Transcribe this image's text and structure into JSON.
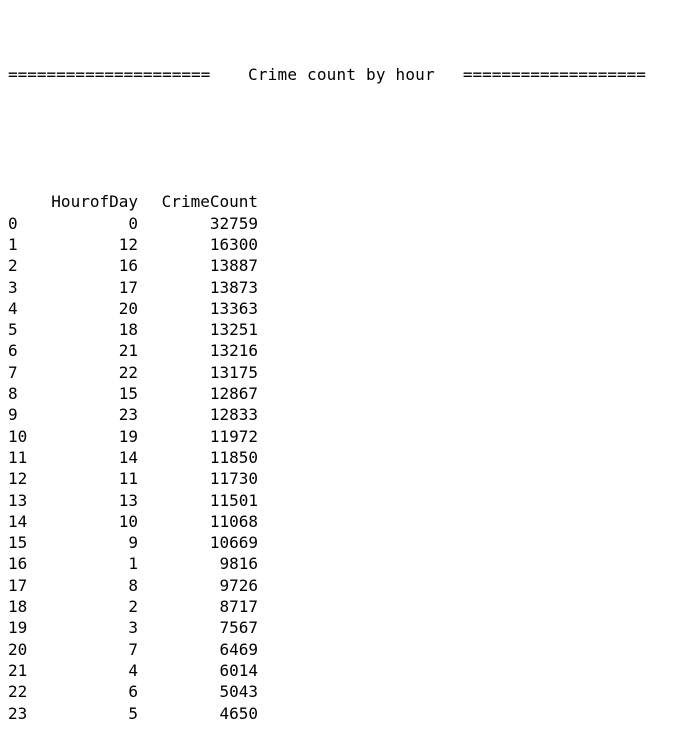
{
  "banner": {
    "left_rule": "=====================",
    "title": "Crime count by hour",
    "right_rule": "==================="
  },
  "table": {
    "columns": [
      "",
      "HourofDay",
      "CrimeCount"
    ],
    "rows": [
      {
        "index": "0",
        "hour": "0",
        "count": "32759"
      },
      {
        "index": "1",
        "hour": "12",
        "count": "16300"
      },
      {
        "index": "2",
        "hour": "16",
        "count": "13887"
      },
      {
        "index": "3",
        "hour": "17",
        "count": "13873"
      },
      {
        "index": "4",
        "hour": "20",
        "count": "13363"
      },
      {
        "index": "5",
        "hour": "18",
        "count": "13251"
      },
      {
        "index": "6",
        "hour": "21",
        "count": "13216"
      },
      {
        "index": "7",
        "hour": "22",
        "count": "13175"
      },
      {
        "index": "8",
        "hour": "15",
        "count": "12867"
      },
      {
        "index": "9",
        "hour": "23",
        "count": "12833"
      },
      {
        "index": "10",
        "hour": "19",
        "count": "11972"
      },
      {
        "index": "11",
        "hour": "14",
        "count": "11850"
      },
      {
        "index": "12",
        "hour": "11",
        "count": "11730"
      },
      {
        "index": "13",
        "hour": "13",
        "count": "11501"
      },
      {
        "index": "14",
        "hour": "10",
        "count": "11068"
      },
      {
        "index": "15",
        "hour": "9",
        "count": "10669"
      },
      {
        "index": "16",
        "hour": "1",
        "count": "9816"
      },
      {
        "index": "17",
        "hour": "8",
        "count": "9726"
      },
      {
        "index": "18",
        "hour": "2",
        "count": "8717"
      },
      {
        "index": "19",
        "hour": "3",
        "count": "7567"
      },
      {
        "index": "20",
        "hour": "7",
        "count": "6469"
      },
      {
        "index": "21",
        "hour": "4",
        "count": "6014"
      },
      {
        "index": "22",
        "hour": "6",
        "count": "5043"
      },
      {
        "index": "23",
        "hour": "5",
        "count": "4650"
      }
    ]
  }
}
